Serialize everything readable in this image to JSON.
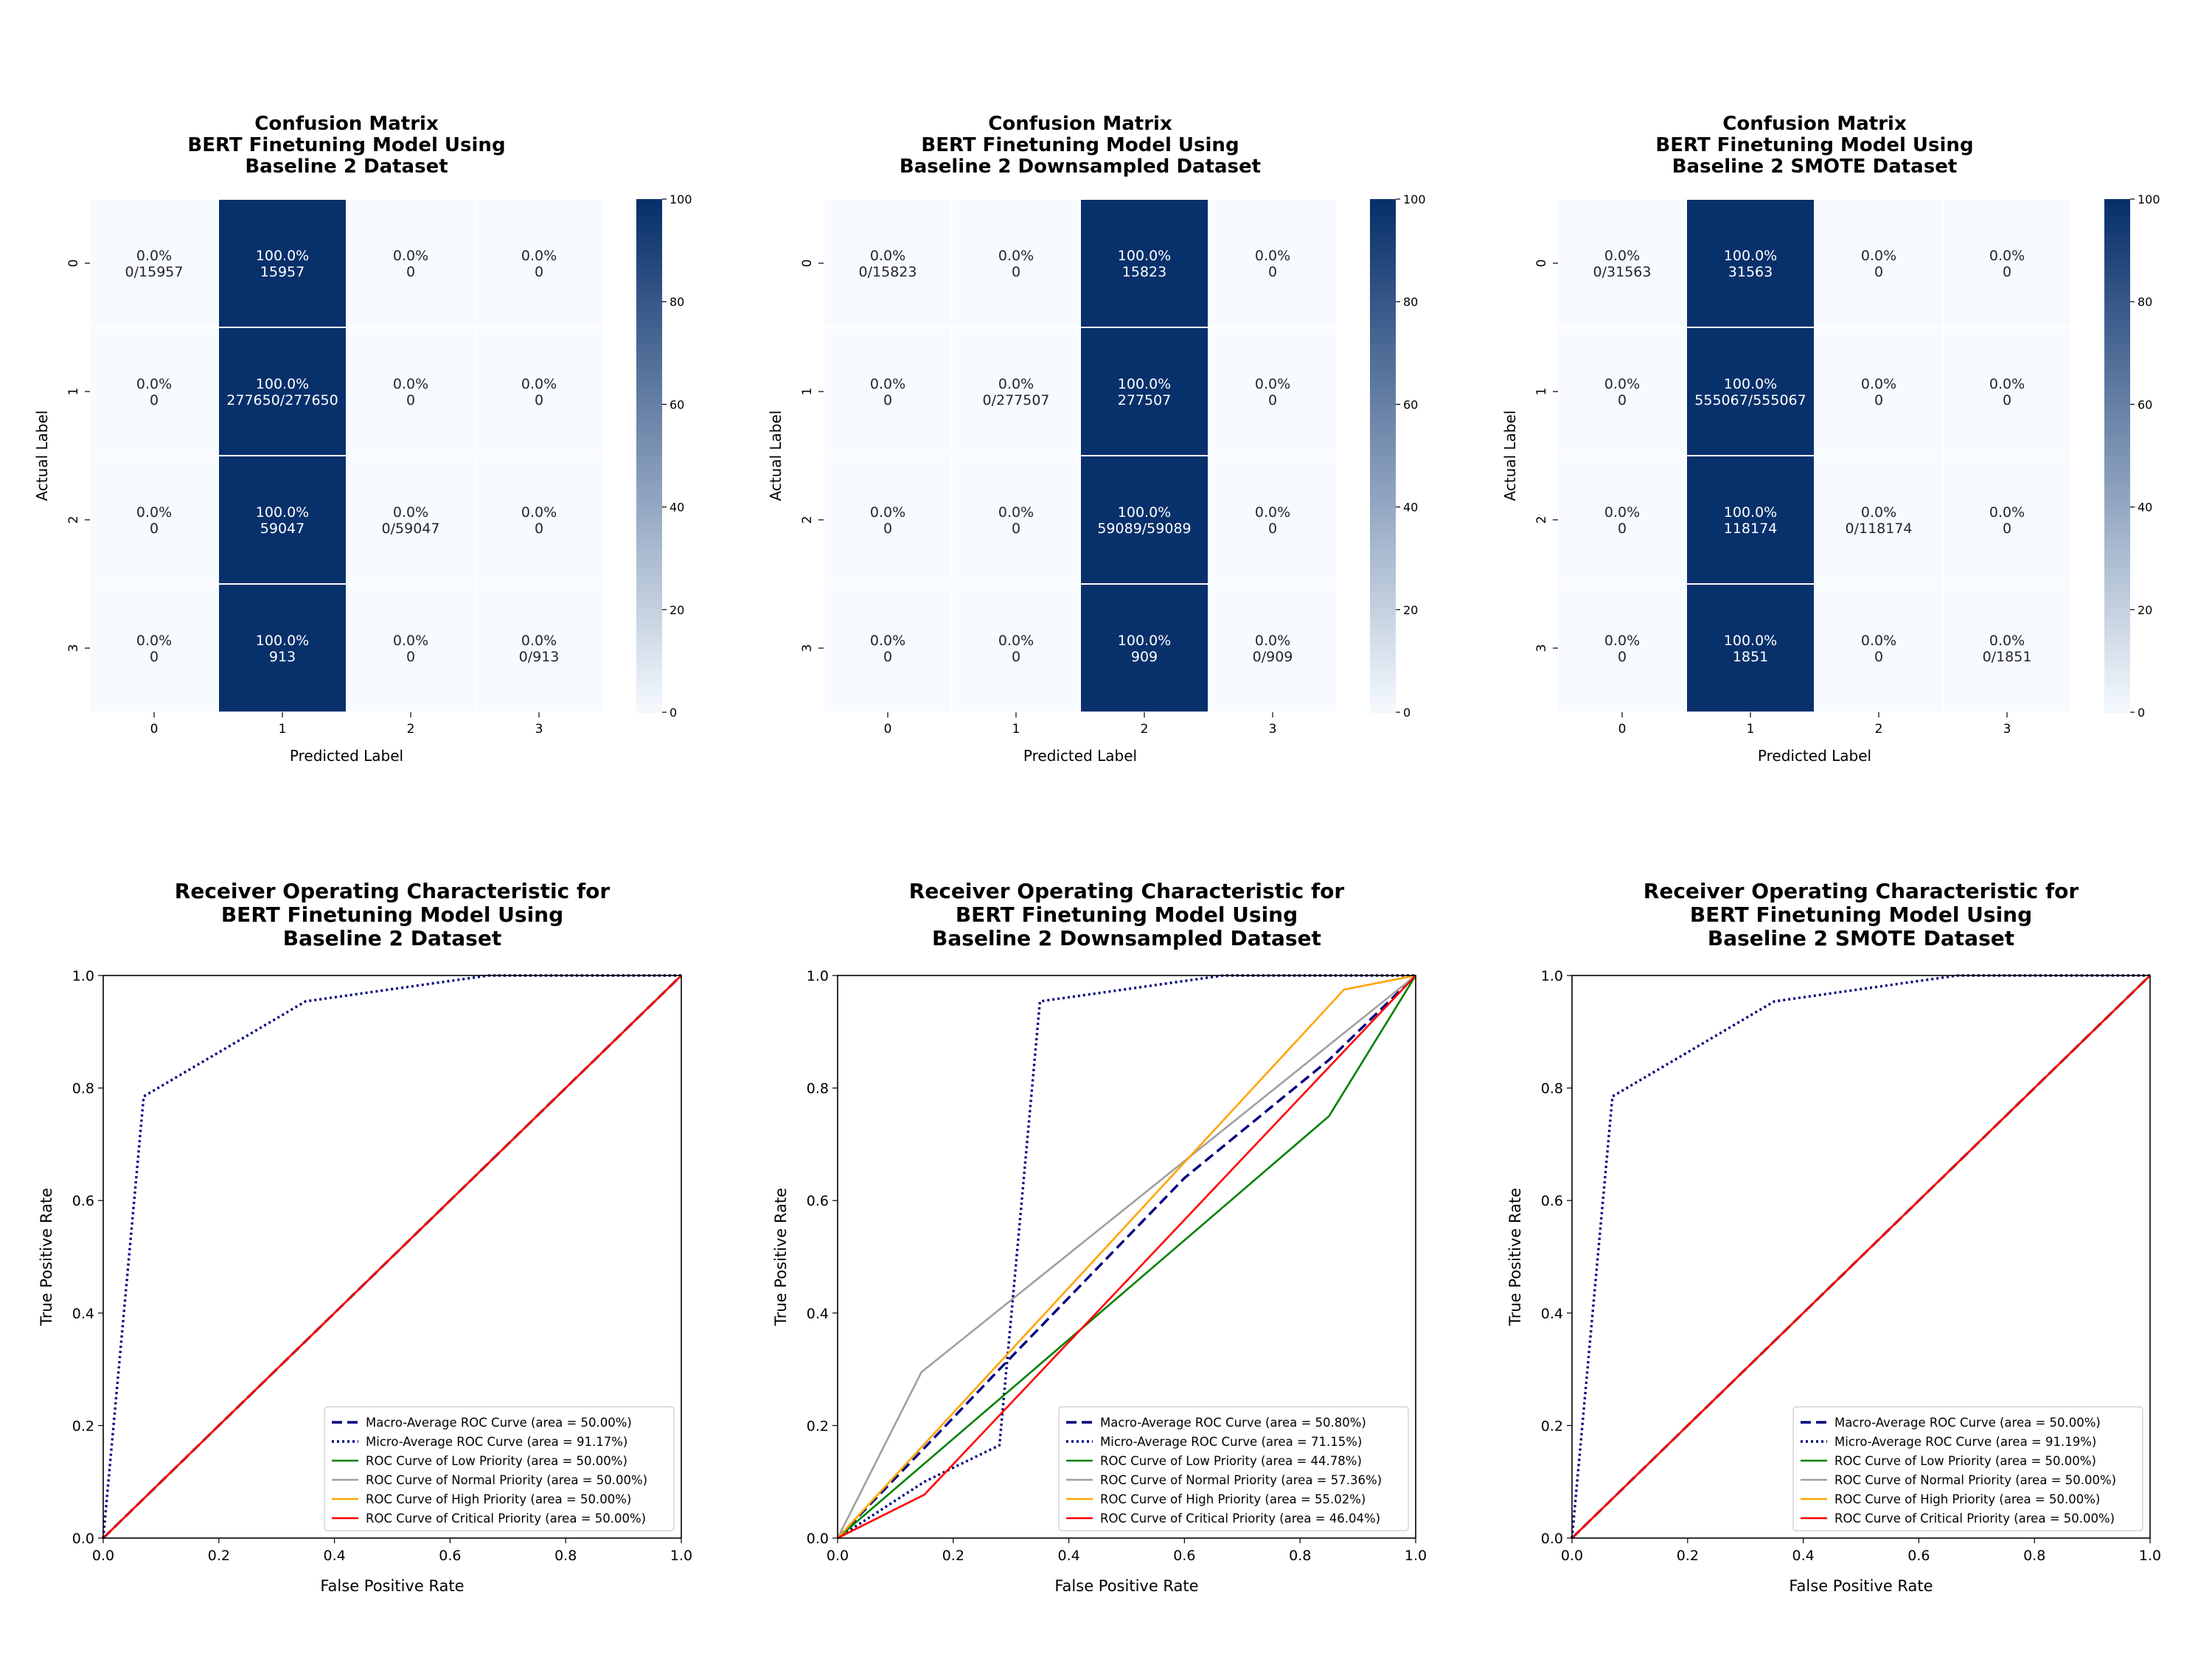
{
  "colors": {
    "heat_low": "#f7fbff",
    "heat_high": "#08306b",
    "macro": "#000080",
    "micro": "#000080",
    "low": "#008000",
    "normal": "#a0a0a0",
    "high": "#ffa500",
    "critical": "#ff0000",
    "diagonal": "#ff0000"
  },
  "chart_data": [
    {
      "type": "heatmap",
      "title_lines": [
        "Confusion Matrix",
        "BERT Finetuning Model Using",
        "Baseline 2 Dataset"
      ],
      "xlabel": "Predicted Label",
      "ylabel": "Actual Label",
      "x_categories": [
        "0",
        "1",
        "2",
        "3"
      ],
      "y_categories": [
        "0",
        "1",
        "2",
        "3"
      ],
      "values": [
        [
          0,
          100,
          0,
          0
        ],
        [
          0,
          100,
          0,
          0
        ],
        [
          0,
          100,
          0,
          0
        ],
        [
          0,
          100,
          0,
          0
        ]
      ],
      "annotations": [
        [
          [
            "0.0%",
            "0/15957"
          ],
          [
            "100.0%",
            "15957"
          ],
          [
            "0.0%",
            "0"
          ],
          [
            "0.0%",
            "0"
          ]
        ],
        [
          [
            "0.0%",
            "0"
          ],
          [
            "100.0%",
            "277650/277650"
          ],
          [
            "0.0%",
            "0"
          ],
          [
            "0.0%",
            "0"
          ]
        ],
        [
          [
            "0.0%",
            "0"
          ],
          [
            "100.0%",
            "59047"
          ],
          [
            "0.0%",
            "0/59047"
          ],
          [
            "0.0%",
            "0"
          ]
        ],
        [
          [
            "0.0%",
            "0"
          ],
          [
            "100.0%",
            "913"
          ],
          [
            "0.0%",
            "0"
          ],
          [
            "0.0%",
            "0/913"
          ]
        ]
      ],
      "colorbar": {
        "range": [
          0,
          100
        ],
        "ticks": [
          "0",
          "20",
          "40",
          "60",
          "80",
          "100"
        ]
      }
    },
    {
      "type": "heatmap",
      "title_lines": [
        "Confusion Matrix",
        "BERT Finetuning Model Using",
        "Baseline 2 Downsampled Dataset"
      ],
      "xlabel": "Predicted Label",
      "ylabel": "Actual Label",
      "x_categories": [
        "0",
        "1",
        "2",
        "3"
      ],
      "y_categories": [
        "0",
        "1",
        "2",
        "3"
      ],
      "values": [
        [
          0,
          0,
          100,
          0
        ],
        [
          0,
          0,
          100,
          0
        ],
        [
          0,
          0,
          100,
          0
        ],
        [
          0,
          0,
          100,
          0
        ]
      ],
      "annotations": [
        [
          [
            "0.0%",
            "0/15823"
          ],
          [
            "0.0%",
            "0"
          ],
          [
            "100.0%",
            "15823"
          ],
          [
            "0.0%",
            "0"
          ]
        ],
        [
          [
            "0.0%",
            "0"
          ],
          [
            "0.0%",
            "0/277507"
          ],
          [
            "100.0%",
            "277507"
          ],
          [
            "0.0%",
            "0"
          ]
        ],
        [
          [
            "0.0%",
            "0"
          ],
          [
            "0.0%",
            "0"
          ],
          [
            "100.0%",
            "59089/59089"
          ],
          [
            "0.0%",
            "0"
          ]
        ],
        [
          [
            "0.0%",
            "0"
          ],
          [
            "0.0%",
            "0"
          ],
          [
            "100.0%",
            "909"
          ],
          [
            "0.0%",
            "0/909"
          ]
        ]
      ],
      "colorbar": {
        "range": [
          0,
          100
        ],
        "ticks": [
          "0",
          "20",
          "40",
          "60",
          "80",
          "100"
        ]
      }
    },
    {
      "type": "heatmap",
      "title_lines": [
        "Confusion Matrix",
        "BERT Finetuning Model Using",
        "Baseline 2 SMOTE Dataset"
      ],
      "xlabel": "Predicted Label",
      "ylabel": "Actual Label",
      "x_categories": [
        "0",
        "1",
        "2",
        "3"
      ],
      "y_categories": [
        "0",
        "1",
        "2",
        "3"
      ],
      "values": [
        [
          0,
          100,
          0,
          0
        ],
        [
          0,
          100,
          0,
          0
        ],
        [
          0,
          100,
          0,
          0
        ],
        [
          0,
          100,
          0,
          0
        ]
      ],
      "annotations": [
        [
          [
            "0.0%",
            "0/31563"
          ],
          [
            "100.0%",
            "31563"
          ],
          [
            "0.0%",
            "0"
          ],
          [
            "0.0%",
            "0"
          ]
        ],
        [
          [
            "0.0%",
            "0"
          ],
          [
            "100.0%",
            "555067/555067"
          ],
          [
            "0.0%",
            "0"
          ],
          [
            "0.0%",
            "0"
          ]
        ],
        [
          [
            "0.0%",
            "0"
          ],
          [
            "100.0%",
            "118174"
          ],
          [
            "0.0%",
            "0/118174"
          ],
          [
            "0.0%",
            "0"
          ]
        ],
        [
          [
            "0.0%",
            "0"
          ],
          [
            "100.0%",
            "1851"
          ],
          [
            "0.0%",
            "0"
          ],
          [
            "0.0%",
            "0/1851"
          ]
        ]
      ],
      "colorbar": {
        "range": [
          0,
          100
        ],
        "ticks": [
          "0",
          "20",
          "40",
          "60",
          "80",
          "100"
        ]
      }
    },
    {
      "type": "line",
      "title_lines": [
        "Receiver Operating Characteristic for",
        "BERT Finetuning Model Using",
        "Baseline 2 Dataset"
      ],
      "xlabel": "False Positive Rate",
      "ylabel": "True Positive Rate",
      "xlim": [
        0,
        1
      ],
      "ylim": [
        0,
        1
      ],
      "xticks": [
        "0.0",
        "0.2",
        "0.4",
        "0.6",
        "0.8",
        "1.0"
      ],
      "yticks": [
        "0.0",
        "0.2",
        "0.4",
        "0.6",
        "0.8",
        "1.0"
      ],
      "legend_position": "lower-right",
      "diagonal": true,
      "series": [
        {
          "name": "Macro-Average ROC Curve (area = 50.00%)",
          "style": "dashed",
          "color_key": "macro",
          "points": [
            [
              0,
              0
            ],
            [
              1,
              1
            ]
          ]
        },
        {
          "name": "Micro-Average ROC Curve (area = 91.17%)",
          "style": "dotted",
          "color_key": "micro",
          "points": [
            [
              0,
              0
            ],
            [
              0.07,
              0.785
            ],
            [
              0.35,
              0.954
            ],
            [
              0.667,
              1.0
            ],
            [
              1,
              1
            ]
          ]
        },
        {
          "name": "ROC Curve of Low Priority (area = 50.00%)",
          "style": "solid",
          "color_key": "low",
          "points": [
            [
              0,
              0
            ],
            [
              1,
              1
            ]
          ]
        },
        {
          "name": "ROC Curve of Normal Priority (area = 50.00%)",
          "style": "solid",
          "color_key": "normal",
          "points": [
            [
              0,
              0
            ],
            [
              1,
              1
            ]
          ]
        },
        {
          "name": "ROC Curve of High Priority (area = 50.00%)",
          "style": "solid",
          "color_key": "high",
          "points": [
            [
              0,
              0
            ],
            [
              1,
              1
            ]
          ]
        },
        {
          "name": "ROC Curve of Critical Priority (area = 50.00%)",
          "style": "solid",
          "color_key": "critical",
          "points": [
            [
              0,
              0
            ],
            [
              1,
              1
            ]
          ]
        }
      ]
    },
    {
      "type": "line",
      "title_lines": [
        "Receiver Operating Characteristic for",
        "BERT Finetuning Model Using",
        "Baseline 2 Downsampled Dataset"
      ],
      "xlabel": "False Positive Rate",
      "ylabel": "True Positive Rate",
      "xlim": [
        0,
        1
      ],
      "ylim": [
        0,
        1
      ],
      "xticks": [
        "0.0",
        "0.2",
        "0.4",
        "0.6",
        "0.8",
        "1.0"
      ],
      "yticks": [
        "0.0",
        "0.2",
        "0.4",
        "0.6",
        "0.8",
        "1.0"
      ],
      "legend_position": "lower-right",
      "diagonal": false,
      "series": [
        {
          "name": "Macro-Average ROC Curve (area = 50.80%)",
          "style": "dashed",
          "color_key": "macro",
          "points": [
            [
              0,
              0
            ],
            [
              0.15,
              0.16
            ],
            [
              0.28,
              0.3
            ],
            [
              0.6,
              0.64
            ],
            [
              0.85,
              0.85
            ],
            [
              1,
              1
            ]
          ]
        },
        {
          "name": "Micro-Average ROC Curve (area = 71.15%)",
          "style": "dotted",
          "color_key": "micro",
          "points": [
            [
              0,
              0
            ],
            [
              0.15,
              0.1
            ],
            [
              0.28,
              0.165
            ],
            [
              0.35,
              0.954
            ],
            [
              0.667,
              1.0
            ],
            [
              1,
              1
            ]
          ]
        },
        {
          "name": "ROC Curve of Low Priority (area = 44.78%)",
          "style": "solid",
          "color_key": "low",
          "points": [
            [
              0,
              0
            ],
            [
              0.85,
              0.75
            ],
            [
              1,
              1
            ]
          ]
        },
        {
          "name": "ROC Curve of Normal Priority (area = 57.36%)",
          "style": "solid",
          "color_key": "normal",
          "points": [
            [
              0,
              0
            ],
            [
              0.145,
              0.295
            ],
            [
              1,
              1
            ]
          ]
        },
        {
          "name": "ROC Curve of High Priority (area = 55.02%)",
          "style": "solid",
          "color_key": "high",
          "points": [
            [
              0,
              0
            ],
            [
              0.876,
              0.975
            ],
            [
              1,
              1
            ]
          ]
        },
        {
          "name": "ROC Curve of Critical Priority (area = 46.04%)",
          "style": "solid",
          "color_key": "critical",
          "points": [
            [
              0,
              0
            ],
            [
              0.15,
              0.077
            ],
            [
              1,
              1
            ]
          ]
        }
      ]
    },
    {
      "type": "line",
      "title_lines": [
        "Receiver Operating Characteristic for",
        "BERT Finetuning Model Using",
        "Baseline 2 SMOTE Dataset"
      ],
      "xlabel": "False Positive Rate",
      "ylabel": "True Positive Rate",
      "xlim": [
        0,
        1
      ],
      "ylim": [
        0,
        1
      ],
      "xticks": [
        "0.0",
        "0.2",
        "0.4",
        "0.6",
        "0.8",
        "1.0"
      ],
      "yticks": [
        "0.0",
        "0.2",
        "0.4",
        "0.6",
        "0.8",
        "1.0"
      ],
      "legend_position": "lower-right",
      "diagonal": true,
      "series": [
        {
          "name": "Macro-Average ROC Curve (area = 50.00%)",
          "style": "dashed",
          "color_key": "macro",
          "points": [
            [
              0,
              0
            ],
            [
              1,
              1
            ]
          ]
        },
        {
          "name": "Micro-Average ROC Curve (area = 91.19%)",
          "style": "dotted",
          "color_key": "micro",
          "points": [
            [
              0,
              0
            ],
            [
              0.07,
              0.785
            ],
            [
              0.35,
              0.954
            ],
            [
              0.667,
              1.0
            ],
            [
              1,
              1
            ]
          ]
        },
        {
          "name": "ROC Curve of Low Priority (area = 50.00%)",
          "style": "solid",
          "color_key": "low",
          "points": [
            [
              0,
              0
            ],
            [
              1,
              1
            ]
          ]
        },
        {
          "name": "ROC Curve of Normal Priority (area = 50.00%)",
          "style": "solid",
          "color_key": "normal",
          "points": [
            [
              0,
              0
            ],
            [
              1,
              1
            ]
          ]
        },
        {
          "name": "ROC Curve of High Priority (area = 50.00%)",
          "style": "solid",
          "color_key": "high",
          "points": [
            [
              0,
              0
            ],
            [
              1,
              1
            ]
          ]
        },
        {
          "name": "ROC Curve of Critical Priority (area = 50.00%)",
          "style": "solid",
          "color_key": "critical",
          "points": [
            [
              0,
              0
            ],
            [
              1,
              1
            ]
          ]
        }
      ]
    }
  ]
}
